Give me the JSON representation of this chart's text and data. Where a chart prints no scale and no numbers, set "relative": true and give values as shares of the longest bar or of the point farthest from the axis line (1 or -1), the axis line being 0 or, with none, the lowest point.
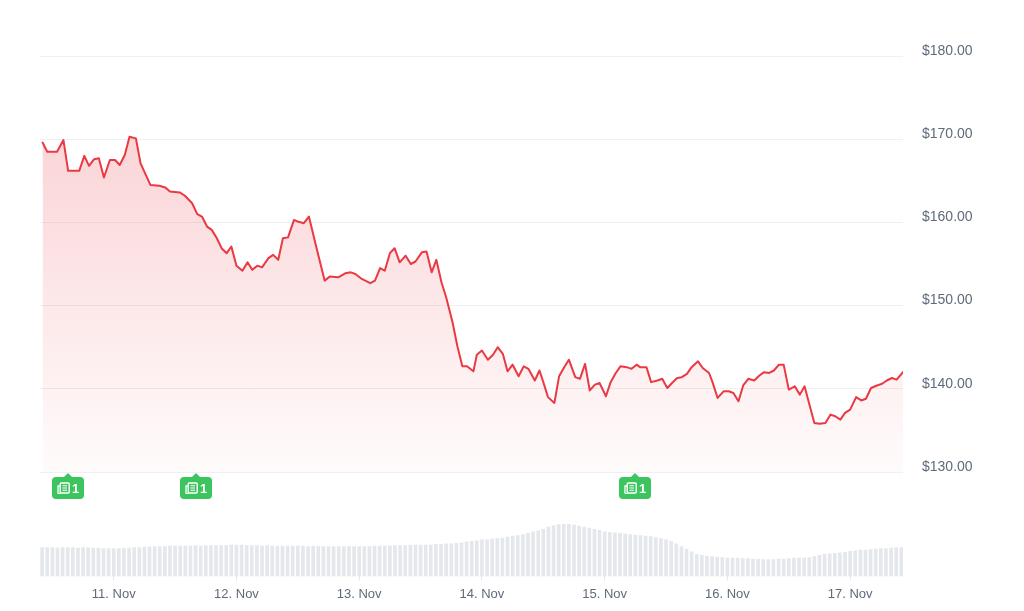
{
  "chart_data": [
    {
      "type": "area",
      "color": "#ea3943",
      "xlim": [
        "--11-10T09:35",
        "--11-17T10:20"
      ],
      "ylim": [
        130,
        180
      ],
      "yticks": [
        {
          "value": 130,
          "label": "$130.00"
        },
        {
          "value": 140,
          "label": "$140.00"
        },
        {
          "value": 150,
          "label": "$150.00"
        },
        {
          "value": 160,
          "label": "$160.00"
        },
        {
          "value": 170,
          "label": "$170.00"
        },
        {
          "value": 180,
          "label": "$180.00"
        }
      ],
      "grid": "y",
      "tick_labels": "y",
      "annotations": [
        "1",
        "1",
        "1"
      ],
      "x": [
        "--11-10T10:05",
        "--11-10T11:00",
        "--11-10T12:55",
        "--11-10T14:10",
        "--11-10T15:05",
        "--11-10T17:15",
        "--11-10T18:15",
        "--11-10T19:10",
        "--11-10T20:10",
        "--11-10T21:05",
        "--11-10T22:05",
        "--11-10T23:15",
        "--11-11T00:15",
        "--11-11T01:10",
        "--11-11T02:10",
        "--11-11T03:05",
        "--11-11T04:20",
        "--11-11T05:15",
        "--11-11T07:10",
        "--11-11T08:55",
        "--11-11T10:05",
        "--11-11T11:00",
        "--11-11T12:55",
        "--11-11T13:55",
        "--11-11T15:20",
        "--11-11T16:20",
        "--11-11T17:15",
        "--11-11T18:15",
        "--11-11T19:10",
        "--11-11T20:10",
        "--11-11T21:05",
        "--11-11T22:05",
        "--11-11T23:00",
        "--11-12T00:00",
        "--11-12T01:10",
        "--11-12T02:10",
        "--11-12T03:05",
        "--11-12T04:05",
        "--11-12T05:00",
        "--11-12T06:15",
        "--11-12T07:10",
        "--11-12T08:10",
        "--11-12T09:05",
        "--11-12T10:05",
        "--11-12T11:15",
        "--11-12T12:00",
        "--11-12T13:10",
        "--11-12T14:10",
        "--11-12T15:35",
        "--11-12T17:15",
        "--11-12T18:15",
        "--11-12T19:55",
        "--11-12T21:20",
        "--11-12T22:20",
        "--11-12T23:15",
        "--11-13T00:30",
        "--11-13T02:10",
        "--11-13T03:05",
        "--11-13T04:05",
        "--11-13T05:00",
        "--11-13T06:00",
        "--11-13T06:55",
        "--11-13T07:55",
        "--11-13T09:05",
        "--11-13T10:05",
        "--11-13T11:00",
        "--11-13T12:15",
        "--11-13T13:10",
        "--11-13T14:10",
        "--11-13T15:05",
        "--11-13T16:05",
        "--11-13T17:00",
        "--11-13T18:15",
        "--11-13T19:10",
        "--11-13T20:10",
        "--11-13T21:05",
        "--11-13T22:20",
        "--11-13T23:00",
        "--11-14T00:00",
        "--11-14T01:10",
        "--11-14T02:10",
        "--11-14T03:05",
        "--11-14T04:05",
        "--11-14T05:00",
        "--11-14T06:00",
        "--11-14T07:10",
        "--11-14T08:10",
        "--11-14T09:05",
        "--11-14T10:20",
        "--11-14T11:15",
        "--11-14T12:00",
        "--11-14T12:55",
        "--11-14T14:10",
        "--11-14T15:05",
        "--11-14T16:05",
        "--11-14T17:00",
        "--11-14T18:15",
        "--11-14T19:10",
        "--11-14T20:10",
        "--11-14T21:05",
        "--11-14T22:05",
        "--11-14T23:00",
        "--11-15T00:15",
        "--11-15T01:10",
        "--11-15T02:10",
        "--11-15T03:05",
        "--11-15T04:20",
        "--11-15T05:15",
        "--11-15T06:15",
        "--11-15T06:55",
        "--11-15T08:10",
        "--11-15T09:05",
        "--11-15T10:20",
        "--11-15T11:15",
        "--11-15T12:15",
        "--11-15T13:10",
        "--11-15T14:10",
        "--11-15T15:05",
        "--11-15T16:05",
        "--11-15T17:00",
        "--11-15T18:15",
        "--11-15T19:10",
        "--11-15T20:25",
        "--11-15T21:05",
        "--11-15T22:05",
        "--11-15T23:15",
        "--11-16T00:15",
        "--11-16T01:10",
        "--11-16T02:10",
        "--11-16T03:05",
        "--11-16T04:05",
        "--11-16T05:15",
        "--11-16T06:15",
        "--11-16T07:10",
        "--11-16T08:10",
        "--11-16T09:05",
        "--11-16T10:05",
        "--11-16T11:00",
        "--11-16T12:00",
        "--11-16T13:10",
        "--11-16T14:10",
        "--11-16T15:05",
        "--11-16T16:05",
        "--11-16T17:00",
        "--11-16T18:00",
        "--11-16T19:10",
        "--11-16T20:10",
        "--11-16T21:05",
        "--11-16T22:05",
        "--11-16T23:00",
        "--11-17T00:00",
        "--11-17T01:10",
        "--11-17T02:10",
        "--11-17T03:05",
        "--11-17T04:05",
        "--11-17T05:15",
        "--11-17T06:15",
        "--11-17T07:10",
        "--11-17T08:10",
        "--11-17T09:05",
        "--11-17T10:20"
      ],
      "values": [
        169.6,
        168.5,
        168.5,
        169.9,
        166.2,
        166.2,
        168,
        166.8,
        167.6,
        167.7,
        165.4,
        167.5,
        167.5,
        166.9,
        168.1,
        170.3,
        170.1,
        167.1,
        164.5,
        164.4,
        164.2,
        163.7,
        163.6,
        163.2,
        162.3,
        161,
        160.7,
        159.5,
        159.1,
        158.1,
        156.9,
        156.3,
        157.1,
        154.8,
        154.2,
        155.2,
        154.3,
        154.8,
        154.6,
        155.7,
        156.1,
        155.5,
        158.1,
        158.2,
        160.3,
        160.1,
        159.9,
        160.7,
        157.1,
        153,
        153.5,
        153.4,
        153.9,
        154,
        153.8,
        153.2,
        152.7,
        153,
        154.5,
        154.2,
        156.3,
        156.9,
        155.2,
        156,
        155,
        155.3,
        156.4,
        156.5,
        154,
        155.5,
        152.8,
        151,
        148,
        145.2,
        142.7,
        142.7,
        142.1,
        144.1,
        144.6,
        143.5,
        144.1,
        145,
        144.2,
        142.1,
        142.9,
        141.5,
        142.7,
        142.4,
        141,
        142.2,
        140.8,
        139,
        138.3,
        141.5,
        142.6,
        143.5,
        141.4,
        141.2,
        143,
        139.8,
        140.5,
        140.7,
        139.1,
        140.8,
        141.9,
        142.7,
        142.6,
        142.4,
        142.9,
        142.6,
        142.6,
        140.8,
        141,
        141.2,
        140.1,
        140.7,
        141.3,
        141.4,
        141.8,
        142.6,
        143.3,
        142.5,
        141.9,
        140.8,
        138.9,
        139.7,
        139.7,
        139.5,
        138.5,
        140.4,
        141.2,
        141,
        141.6,
        142,
        141.9,
        142.2,
        142.9,
        142.9,
        139.9,
        140.3,
        139.3,
        140.3,
        138,
        135.9,
        135.8,
        135.9,
        136.9,
        136.7,
        136.3,
        137.1,
        137.5,
        139,
        138.6,
        138.8,
        140.1,
        140.4,
        140.6,
        141,
        141.3,
        141.1,
        142
      ]
    },
    {
      "type": "bar",
      "relative": true,
      "color": "#e4e7eb",
      "xlim": [
        "--11-10T09:35",
        "--11-17T10:20"
      ],
      "xticks": [
        {
          "value": "--11-11",
          "label": "11. Nov"
        },
        {
          "value": "--11-12",
          "label": "12. Nov"
        },
        {
          "value": "--11-13",
          "label": "13. Nov"
        },
        {
          "value": "--11-14",
          "label": "14. Nov"
        },
        {
          "value": "--11-15",
          "label": "15. Nov"
        },
        {
          "value": "--11-16",
          "label": "16. Nov"
        },
        {
          "value": "--11-17",
          "label": "17. Nov"
        }
      ],
      "x": [
        "--11-10T10:00",
        "--11-10T11:00",
        "--11-10T12:00",
        "--11-10T13:00",
        "--11-10T14:00",
        "--11-10T15:00",
        "--11-10T16:00",
        "--11-10T17:00",
        "--11-10T18:00",
        "--11-10T19:00",
        "--11-10T20:00",
        "--11-10T21:00",
        "--11-10T22:00",
        "--11-10T23:00",
        "--11-11T00:00",
        "--11-11T01:00",
        "--11-11T02:00",
        "--11-11T03:00",
        "--11-11T04:00",
        "--11-11T05:00",
        "--11-11T06:00",
        "--11-11T07:00",
        "--11-11T08:00",
        "--11-11T09:00",
        "--11-11T10:00",
        "--11-11T11:00",
        "--11-11T12:00",
        "--11-11T13:00",
        "--11-11T14:00",
        "--11-11T15:00",
        "--11-11T16:00",
        "--11-11T17:00",
        "--11-11T18:00",
        "--11-11T19:00",
        "--11-11T20:00",
        "--11-11T21:00",
        "--11-11T22:00",
        "--11-11T23:00",
        "--11-12T00:00",
        "--11-12T01:00",
        "--11-12T02:00",
        "--11-12T03:00",
        "--11-12T04:00",
        "--11-12T05:00",
        "--11-12T06:00",
        "--11-12T07:00",
        "--11-12T08:00",
        "--11-12T09:00",
        "--11-12T10:00",
        "--11-12T11:00",
        "--11-12T12:00",
        "--11-12T13:00",
        "--11-12T14:00",
        "--11-12T15:00",
        "--11-12T16:00",
        "--11-12T17:00",
        "--11-12T18:00",
        "--11-12T19:00",
        "--11-12T20:00",
        "--11-12T21:00",
        "--11-12T22:00",
        "--11-12T23:00",
        "--11-13T00:00",
        "--11-13T01:00",
        "--11-13T02:00",
        "--11-13T03:00",
        "--11-13T04:00",
        "--11-13T05:00",
        "--11-13T06:00",
        "--11-13T07:00",
        "--11-13T08:00",
        "--11-13T09:00",
        "--11-13T10:00",
        "--11-13T11:00",
        "--11-13T12:00",
        "--11-13T13:00",
        "--11-13T14:00",
        "--11-13T15:00",
        "--11-13T16:00",
        "--11-13T17:00",
        "--11-13T18:00",
        "--11-13T19:00",
        "--11-13T20:00",
        "--11-13T21:00",
        "--11-13T22:00",
        "--11-13T23:00",
        "--11-14T00:00",
        "--11-14T01:00",
        "--11-14T02:00",
        "--11-14T03:00",
        "--11-14T04:00",
        "--11-14T05:00",
        "--11-14T06:00",
        "--11-14T07:00",
        "--11-14T08:00",
        "--11-14T09:00",
        "--11-14T10:00",
        "--11-14T11:00",
        "--11-14T12:00",
        "--11-14T13:00",
        "--11-14T14:00",
        "--11-14T15:00",
        "--11-14T16:00",
        "--11-14T17:00",
        "--11-14T18:00",
        "--11-14T19:00",
        "--11-14T20:00",
        "--11-14T21:00",
        "--11-14T22:00",
        "--11-14T23:00",
        "--11-15T00:00",
        "--11-15T01:00",
        "--11-15T02:00",
        "--11-15T03:00",
        "--11-15T04:00",
        "--11-15T05:00",
        "--11-15T06:00",
        "--11-15T07:00",
        "--11-15T08:00",
        "--11-15T09:00",
        "--11-15T10:00",
        "--11-15T11:00",
        "--11-15T12:00",
        "--11-15T13:00",
        "--11-15T14:00",
        "--11-15T15:00",
        "--11-15T16:00",
        "--11-15T17:00",
        "--11-15T18:00",
        "--11-15T19:00",
        "--11-15T20:00",
        "--11-15T21:00",
        "--11-15T22:00",
        "--11-15T23:00",
        "--11-16T00:00",
        "--11-16T01:00",
        "--11-16T02:00",
        "--11-16T03:00",
        "--11-16T04:00",
        "--11-16T05:00",
        "--11-16T06:00",
        "--11-16T07:00",
        "--11-16T08:00",
        "--11-16T09:00",
        "--11-16T10:00",
        "--11-16T11:00",
        "--11-16T12:00",
        "--11-16T13:00",
        "--11-16T14:00",
        "--11-16T15:00",
        "--11-16T16:00",
        "--11-16T17:00",
        "--11-16T18:00",
        "--11-16T19:00",
        "--11-16T20:00",
        "--11-16T21:00",
        "--11-16T22:00",
        "--11-16T23:00",
        "--11-17T00:00",
        "--11-17T01:00",
        "--11-17T02:00",
        "--11-17T03:00",
        "--11-17T04:00",
        "--11-17T05:00",
        "--11-17T06:00",
        "--11-17T07:00",
        "--11-17T08:00",
        "--11-17T09:00",
        "--11-17T10:00"
      ],
      "values": [
        0.55,
        0.55,
        0.55,
        0.54,
        0.55,
        0.55,
        0.55,
        0.54,
        0.55,
        0.55,
        0.54,
        0.54,
        0.53,
        0.53,
        0.53,
        0.53,
        0.54,
        0.54,
        0.55,
        0.55,
        0.56,
        0.56,
        0.57,
        0.57,
        0.57,
        0.58,
        0.58,
        0.58,
        0.58,
        0.58,
        0.59,
        0.58,
        0.59,
        0.59,
        0.59,
        0.59,
        0.59,
        0.6,
        0.6,
        0.6,
        0.59,
        0.59,
        0.59,
        0.58,
        0.59,
        0.58,
        0.58,
        0.58,
        0.58,
        0.58,
        0.58,
        0.58,
        0.57,
        0.58,
        0.57,
        0.57,
        0.57,
        0.57,
        0.57,
        0.57,
        0.57,
        0.57,
        0.57,
        0.57,
        0.57,
        0.58,
        0.58,
        0.58,
        0.58,
        0.59,
        0.59,
        0.59,
        0.6,
        0.6,
        0.6,
        0.6,
        0.6,
        0.61,
        0.61,
        0.62,
        0.62,
        0.63,
        0.64,
        0.66,
        0.67,
        0.68,
        0.7,
        0.7,
        0.71,
        0.72,
        0.73,
        0.75,
        0.77,
        0.78,
        0.8,
        0.82,
        0.85,
        0.87,
        0.9,
        0.94,
        0.97,
        0.99,
        1,
        1,
        0.98,
        0.96,
        0.94,
        0.92,
        0.9,
        0.88,
        0.85,
        0.84,
        0.83,
        0.82,
        0.81,
        0.8,
        0.79,
        0.78,
        0.77,
        0.76,
        0.74,
        0.72,
        0.7,
        0.67,
        0.62,
        0.57,
        0.52,
        0.47,
        0.42,
        0.4,
        0.39,
        0.38,
        0.37,
        0.36,
        0.35,
        0.35,
        0.35,
        0.34,
        0.34,
        0.33,
        0.33,
        0.32,
        0.32,
        0.32,
        0.33,
        0.33,
        0.34,
        0.35,
        0.35,
        0.35,
        0.36,
        0.38,
        0.4,
        0.42,
        0.43,
        0.44,
        0.45,
        0.46,
        0.48,
        0.49,
        0.5,
        0.5,
        0.51,
        0.52,
        0.53,
        0.53,
        0.54,
        0.55,
        0.55
      ]
    }
  ]
}
